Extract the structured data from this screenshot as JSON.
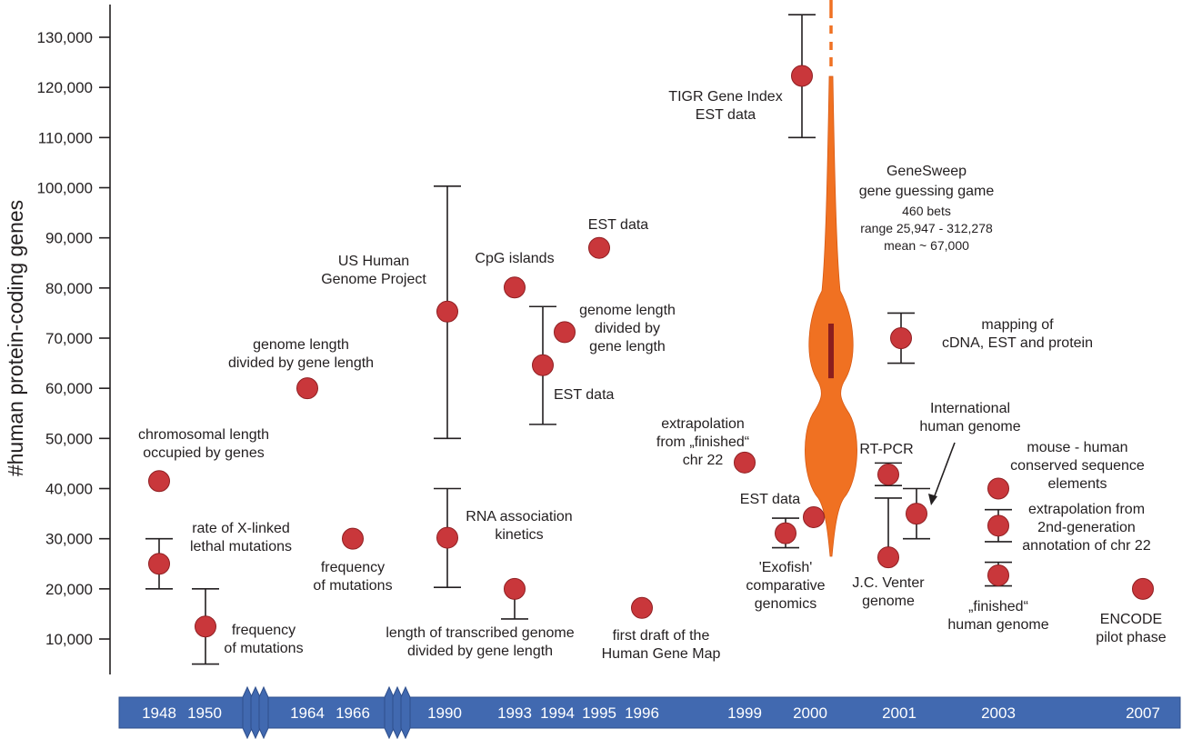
{
  "chart_data": {
    "type": "scatter",
    "title": "",
    "xlabel": "",
    "ylabel": "#human protein-coding genes",
    "ylim": [
      3000,
      136000
    ],
    "yticks": [
      10000,
      20000,
      30000,
      40000,
      50000,
      60000,
      70000,
      80000,
      90000,
      100000,
      110000,
      120000,
      130000
    ],
    "ytick_labels": [
      "10,000",
      "20,000",
      "30,000",
      "40,000",
      "50,000",
      "60,000",
      "70,000",
      "80,000",
      "90,000",
      "100,000",
      "110,000",
      "120,000",
      "130,000"
    ],
    "grid": false,
    "timeline": {
      "years": [
        "1948",
        "1950",
        "1964",
        "1966",
        "1990",
        "1993",
        "1994",
        "1995",
        "1996",
        "1999",
        "2000",
        "2001",
        "2003",
        "2007"
      ],
      "breaks": [
        "1950-1964",
        "1966-1990"
      ],
      "color": "#4169b0"
    },
    "points": [
      {
        "id": "p1948a",
        "year": "1948",
        "value": 41500,
        "label": [
          "chromosomal length",
          "occupied by genes"
        ]
      },
      {
        "id": "p1948b",
        "year": "1948",
        "value": 25000,
        "err_low": 20000,
        "err_high": 30000,
        "label": [
          "rate of X-linked",
          "lethal mutations"
        ]
      },
      {
        "id": "p1950",
        "year": "1950",
        "value": 12500,
        "err_low": 5000,
        "err_high": 20000,
        "label": [
          "frequency",
          "of mutations"
        ]
      },
      {
        "id": "p1964",
        "year": "1964",
        "value": 60000,
        "label": [
          "genome length",
          "divided by gene length"
        ]
      },
      {
        "id": "p1966",
        "year": "1966",
        "value": 30000,
        "label": [
          "frequency",
          "of mutations"
        ]
      },
      {
        "id": "p1990a",
        "year": "1990",
        "value": 75300,
        "err_low": 50000,
        "err_high": 100300,
        "label": [
          "US Human",
          "Genome Project"
        ]
      },
      {
        "id": "p1990b",
        "year": "1990",
        "value": 30200,
        "err_low": 20300,
        "err_high": 40000,
        "label": [
          "RNA association",
          "kinetics"
        ]
      },
      {
        "id": "p1993a",
        "year": "1993",
        "value": 80100,
        "label": [
          "CpG islands"
        ]
      },
      {
        "id": "p1993b",
        "year": "1993",
        "value": 20000,
        "err_low": 14000,
        "label": [
          "length of transcribed genome",
          "divided by gene length"
        ]
      },
      {
        "id": "p1994a",
        "year": "1994",
        "value": 71200,
        "label": [
          "genome length",
          "divided by",
          "gene length"
        ]
      },
      {
        "id": "p1994b",
        "year": "1994",
        "value": 64600,
        "err_low": 52800,
        "err_high": 76300,
        "label": [
          "EST data"
        ]
      },
      {
        "id": "p1995",
        "year": "1995",
        "value": 88000,
        "label": [
          "EST data"
        ]
      },
      {
        "id": "p1996",
        "year": "1996",
        "value": 16200,
        "label": [
          "first draft of the",
          "Human Gene Map"
        ]
      },
      {
        "id": "p1999",
        "year": "1999",
        "value": 45200,
        "label": [
          "extrapolation",
          "from „finished“",
          "chr 22"
        ]
      },
      {
        "id": "p2000a",
        "year": "2000",
        "value": 122300,
        "err_low": 110000,
        "err_high": 134500,
        "label": [
          "TIGR Gene Index",
          "EST data"
        ]
      },
      {
        "id": "p2000b",
        "year": "2000",
        "value": 31100,
        "err_low": 28200,
        "err_high": 34100,
        "label": [
          "'Exofish'",
          "comparative",
          "genomics"
        ]
      },
      {
        "id": "p2000c",
        "year": "2000",
        "value": 34300,
        "label": [
          "EST data"
        ]
      },
      {
        "id": "p2001a",
        "year": "2001",
        "value": 70000,
        "err_low": 65000,
        "err_high": 75000,
        "label": [
          "mapping of",
          "cDNA, EST and protein"
        ]
      },
      {
        "id": "p2001b",
        "year": "2001",
        "value": 42800,
        "err_low": 40600,
        "err_high": 45100,
        "label": [
          "RT-PCR"
        ]
      },
      {
        "id": "p2001c",
        "year": "2001",
        "value": 26300,
        "err_high": 38100,
        "label": [
          "J.C. Venter",
          "genome"
        ]
      },
      {
        "id": "p2001d",
        "year": "2001",
        "value": 35000,
        "err_low": 30000,
        "err_high": 40000,
        "label": [
          "International",
          "human genome"
        ]
      },
      {
        "id": "p2003a",
        "year": "2003",
        "value": 40000,
        "label": [
          "mouse - human",
          "conserved sequence",
          "elements"
        ]
      },
      {
        "id": "p2003b",
        "year": "2003",
        "value": 32600,
        "err_low": 29400,
        "err_high": 35800,
        "label": [
          "extrapolation from",
          "2nd-generation",
          "annotation of chr 22"
        ]
      },
      {
        "id": "p2003c",
        "year": "2003",
        "value": 22700,
        "err_low": 20600,
        "err_high": 25300,
        "label": [
          "„finished“",
          "human genome"
        ]
      },
      {
        "id": "p2007",
        "year": "2007",
        "value": 20000,
        "label": [
          "ENCODE",
          "pilot phase"
        ]
      }
    ],
    "violin": {
      "name": "GeneSweep",
      "year": "2000",
      "label": [
        "GeneSweep",
        "gene guessing game"
      ],
      "details": [
        "460 bets",
        "range 25,947 - 312,278",
        "mean ~ 67,000"
      ],
      "range_min": 25947,
      "range_max": 312278,
      "mean": 67000,
      "bets": 460,
      "iqr_bar": [
        62000,
        72900
      ],
      "color": "#f07122",
      "bar_color": "#8b1e1e"
    },
    "colors": {
      "dot": "#c9373b",
      "dot_outline": "#8f1f22",
      "axis": "#231f20"
    }
  }
}
